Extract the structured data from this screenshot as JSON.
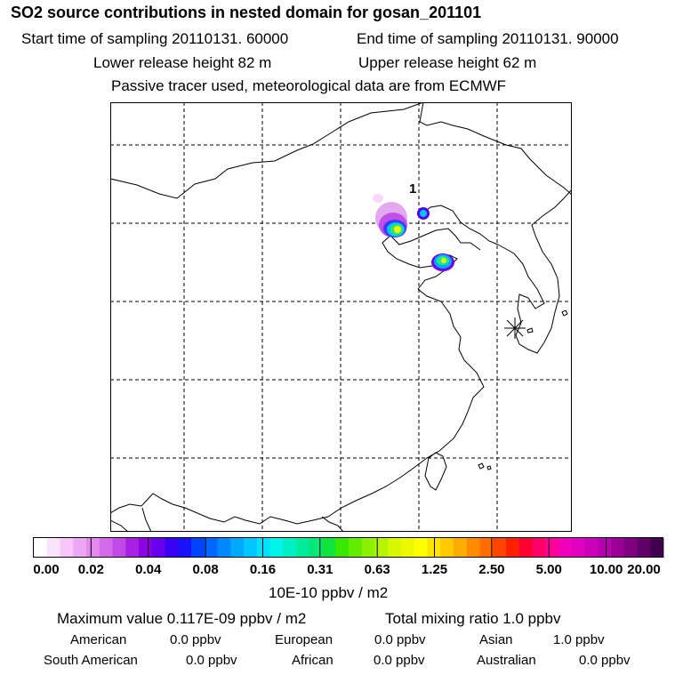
{
  "title": "SO2 source contributions in nested domain for gosan_201101",
  "start_time": "Start time of sampling 20110131. 60000",
  "end_time": "End time of sampling 20110131. 90000",
  "lower_height": "Lower release height   82 m",
  "upper_height": "Upper release height   62 m",
  "tracer_note": "Passive tracer used, meteorological data are from ECMWF",
  "map": {
    "source_label": "1",
    "receptor_symbol": "gosan-receptor-star"
  },
  "colorbar": {
    "unit": "10E-10 ppbv / m2",
    "ticks": [
      "0.00",
      "0.02",
      "0.04",
      "0.08",
      "0.16",
      "0.31",
      "0.63",
      "1.25",
      "2.50",
      "5.00",
      "10.00",
      "20.00"
    ],
    "colors": [
      "#ffffff",
      "#fbe4fb",
      "#f5c6f7",
      "#eea7f3",
      "#e489ef",
      "#d56bec",
      "#c14ae8",
      "#a820e4",
      "#8c00e6",
      "#6600ef",
      "#3d00f7",
      "#1a10fa",
      "#0044ff",
      "#0066ff",
      "#0088ff",
      "#00a8ff",
      "#00c6ff",
      "#00e0ff",
      "#00f4ea",
      "#00f0c4",
      "#00ec9c",
      "#00e878",
      "#10e43a",
      "#38e800",
      "#62ec00",
      "#8cf000",
      "#b6f400",
      "#d8f800",
      "#eef800",
      "#ffff00",
      "#ffe400",
      "#ffc800",
      "#ffac00",
      "#ff8c00",
      "#ff6c00",
      "#ff4400",
      "#ff2000",
      "#ff0030",
      "#ff0068",
      "#ff0098",
      "#f000b8",
      "#e000c0",
      "#cc00b8",
      "#b400b0",
      "#9a0096",
      "#7e0080",
      "#62006a",
      "#440050"
    ]
  },
  "summary": {
    "max_value": "Maximum value  0.117E-09 ppbv / m2",
    "total_mixing": "Total mixing ratio       1.0 ppbv",
    "regions": [
      {
        "name": "American",
        "value": "0.0 ppbv"
      },
      {
        "name": "European",
        "value": "0.0 ppbv"
      },
      {
        "name": "Asian",
        "value": "1.0 ppbv"
      },
      {
        "name": "South American",
        "value": "0.0 ppbv"
      },
      {
        "name": "African",
        "value": "0.0 ppbv"
      },
      {
        "name": "Australian",
        "value": "0.0 ppbv"
      }
    ]
  }
}
